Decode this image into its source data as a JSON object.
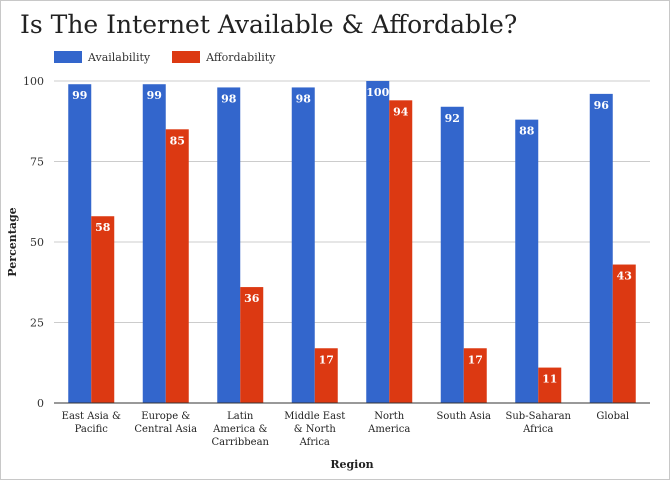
{
  "title": "Is The Internet Available & Affordable?",
  "legend": [
    {
      "label": "Availability",
      "color": "#3366cc"
    },
    {
      "label": "Affordability",
      "color": "#dc3912"
    }
  ],
  "chart_data": {
    "type": "bar",
    "title": "Is The Internet Available & Affordable?",
    "xlabel": "Region",
    "ylabel": "Percentage",
    "ylim": [
      0,
      100
    ],
    "yticks": [
      "0",
      "25",
      "50",
      "75",
      "100"
    ],
    "grid": true,
    "legend_position": "top-left",
    "categories": [
      [
        "East Asia &",
        "Pacific"
      ],
      [
        "Europe &",
        "Central Asia"
      ],
      [
        "Latin",
        "America &",
        "Carribbean"
      ],
      [
        "Middle East",
        "& North",
        "Africa"
      ],
      [
        "North",
        "America"
      ],
      [
        "South Asia"
      ],
      [
        "Sub-Saharan",
        "Africa"
      ],
      [
        "Global"
      ]
    ],
    "series": [
      {
        "name": "Availability",
        "color": "#3366cc",
        "values": [
          99,
          99,
          98,
          98,
          100,
          92,
          88,
          96
        ]
      },
      {
        "name": "Affordability",
        "color": "#dc3912",
        "values": [
          58,
          85,
          36,
          17,
          94,
          17,
          11,
          43
        ]
      }
    ]
  }
}
